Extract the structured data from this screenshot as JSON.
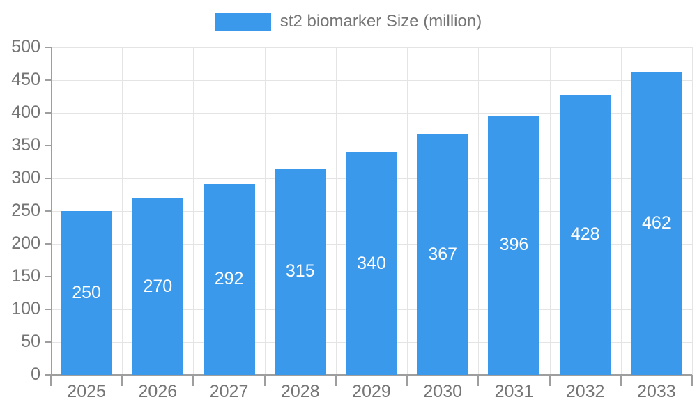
{
  "legend": {
    "label": "st2 biomarker Size (million)"
  },
  "chart_data": {
    "type": "bar",
    "title": "st2 biomarker Size (million)",
    "categories": [
      "2025",
      "2026",
      "2027",
      "2028",
      "2029",
      "2030",
      "2031",
      "2032",
      "2033"
    ],
    "series": [
      {
        "name": "st2 biomarker Size (million)",
        "values": [
          250,
          270,
          292,
          315,
          340,
          367,
          396,
          428,
          462
        ]
      }
    ],
    "xlabel": "",
    "ylabel": "",
    "ylim": [
      0,
      500
    ],
    "ytick_step": 50,
    "ytick_labels": [
      "0",
      "50",
      "100",
      "150",
      "200",
      "250",
      "300",
      "350",
      "400",
      "450",
      "500"
    ],
    "grid": true,
    "value_labels": "inside-center",
    "legend_position": "top-center",
    "colors": {
      "bar": "#3B99EC",
      "grid": "#e4e4e4",
      "axis": "#9e9e9e",
      "tick_label": "#757575",
      "value_label": "#ffffff"
    }
  }
}
